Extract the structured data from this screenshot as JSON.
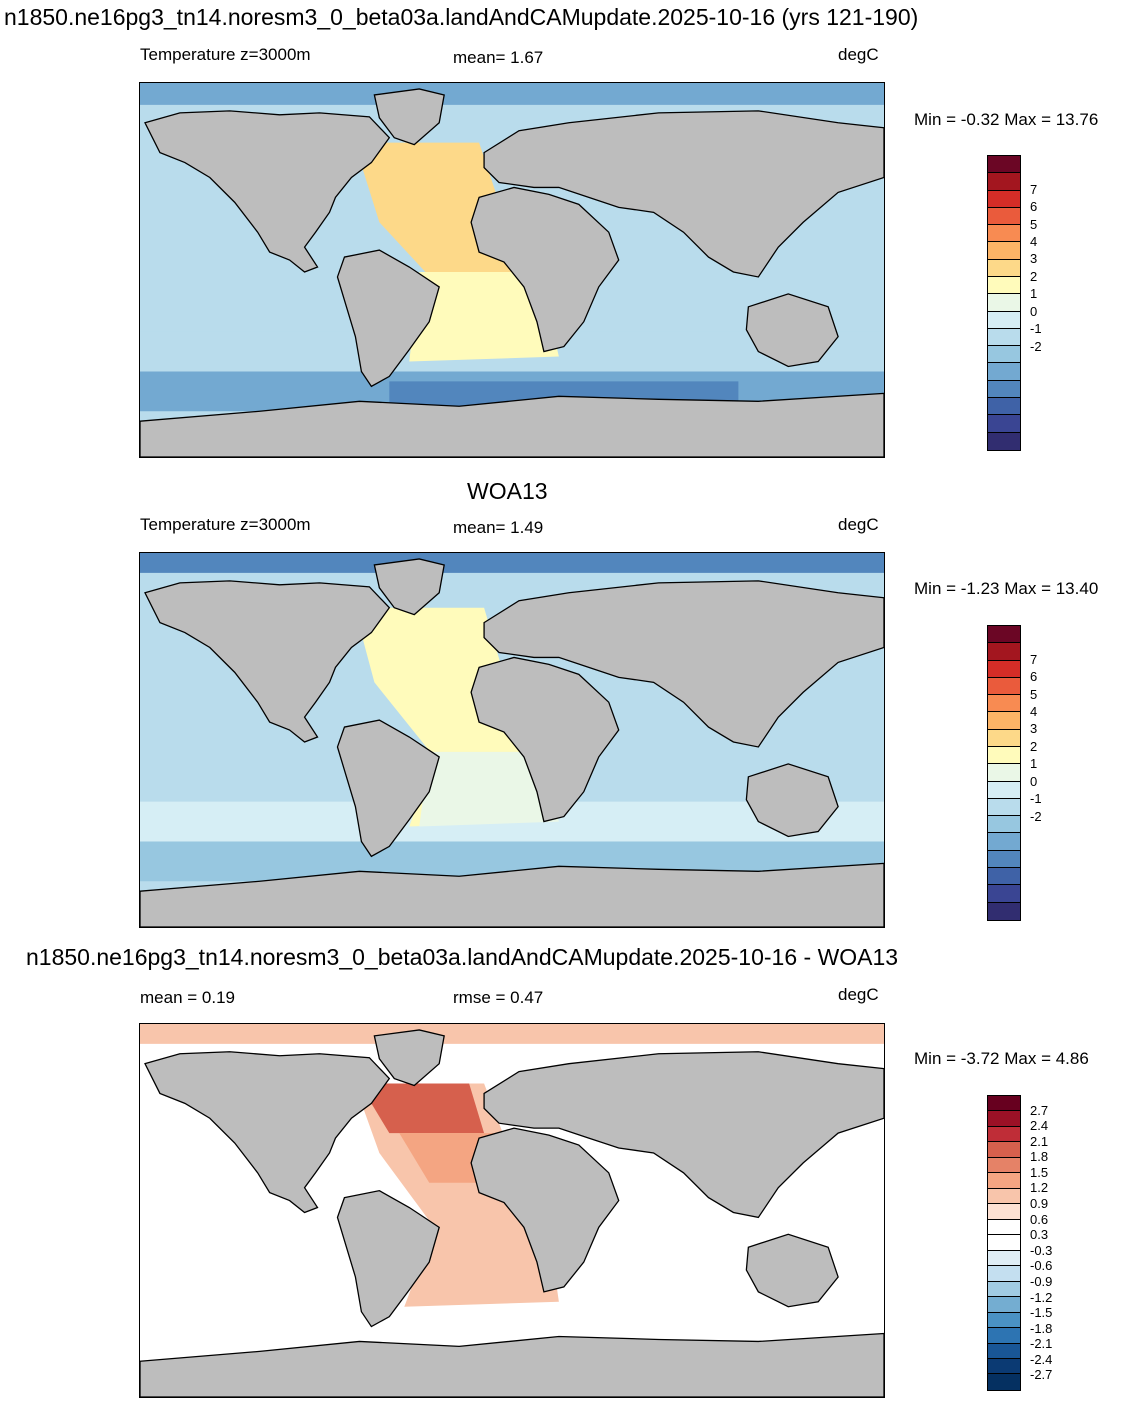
{
  "panel1": {
    "title": "n1850.ne16pg3_tn14.noresm3_0_beta03a.landAndCAMupdate.2025-10-16 (yrs 121-190)",
    "left_label": "Temperature z=3000m",
    "center_label": "mean=   1.67",
    "units": "degC",
    "minmax": "Min =  -0.32 Max =  13.76",
    "ticks": [
      "7",
      "6",
      "5",
      "4",
      "3",
      "2",
      "1",
      "0",
      "-1",
      "-2"
    ]
  },
  "panel2": {
    "title": "WOA13",
    "left_label": "Temperature z=3000m",
    "center_label": "mean=   1.49",
    "units": "degC",
    "minmax": "Min =  -1.23 Max =  13.40",
    "ticks": [
      "7",
      "6",
      "5",
      "4",
      "3",
      "2",
      "1",
      "0",
      "-1",
      "-2"
    ]
  },
  "panel3": {
    "title": "n1850.ne16pg3_tn14.noresm3_0_beta03a.landAndCAMupdate.2025-10-16 - WOA13",
    "left_label": "mean =   0.19",
    "center_label": "rmse =   0.47",
    "units": "degC",
    "minmax": "Min =  -3.72 Max =   4.86",
    "ticks": [
      "2.7",
      "2.4",
      "2.1",
      "1.8",
      "1.5",
      "1.2",
      "0.9",
      "0.6",
      "0.3",
      "-0.3",
      "-0.6",
      "-0.9",
      "-1.2",
      "-1.5",
      "-1.8",
      "-2.1",
      "-2.4",
      "-2.7"
    ]
  },
  "colors": {
    "land": "#bdbdbd",
    "temp_scale": [
      "#6b0625",
      "#a3161f",
      "#d42d27",
      "#ea5b3c",
      "#f88b52",
      "#fdb466",
      "#fdd989",
      "#fffbbb",
      "#eaf7e7",
      "#d6eef5",
      "#b9dcec",
      "#97c7e0",
      "#73a9d1",
      "#5286bd",
      "#3f62a7",
      "#3a4593",
      "#312d70"
    ],
    "diff_scale": [
      "#67001f",
      "#9b1126",
      "#bf2d37",
      "#d6604d",
      "#e58267",
      "#f4a582",
      "#f8c5ab",
      "#fde1d3",
      "#ffffff",
      "#ffffff",
      "#dfedf5",
      "#c4dff0",
      "#a1cbe2",
      "#74add1",
      "#4a92c4",
      "#2d74b2",
      "#195696",
      "#0b3a73",
      "#053061"
    ]
  }
}
